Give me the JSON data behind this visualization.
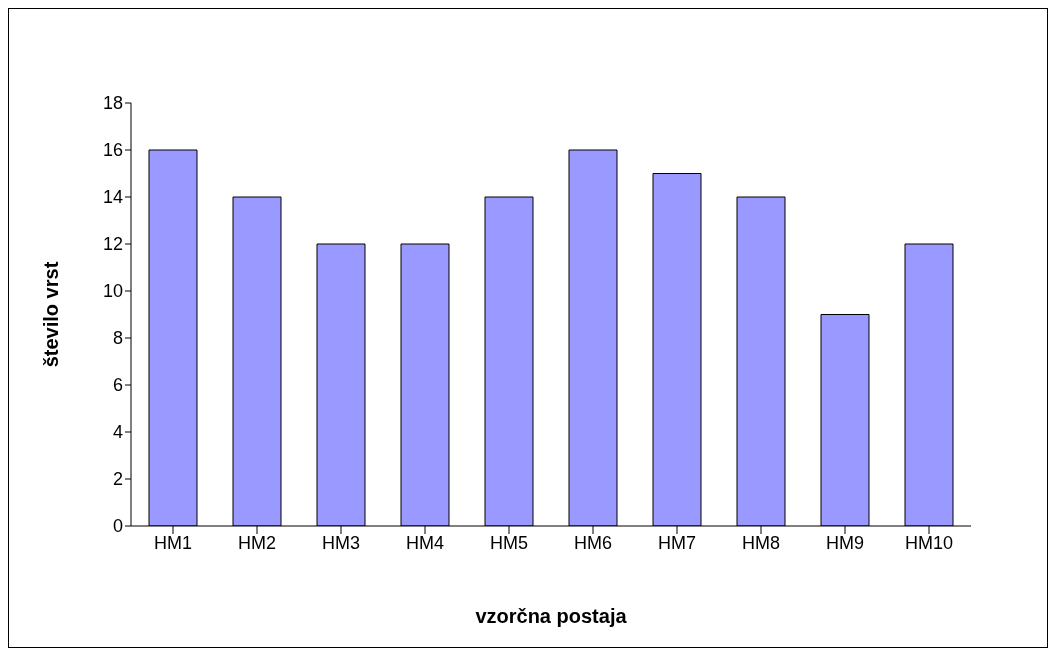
{
  "chart_data": {
    "type": "bar",
    "xlabel": "vzorčna postaja",
    "ylabel": "število vrst",
    "categories": [
      "HM1",
      "HM2",
      "HM3",
      "HM4",
      "HM5",
      "HM6",
      "HM7",
      "HM8",
      "HM9",
      "HM10"
    ],
    "values": [
      16,
      14,
      12,
      12,
      14,
      16,
      15,
      14,
      9,
      12
    ],
    "color": "#9999ff",
    "ylim": [
      0,
      18
    ],
    "yticks": [
      0,
      2,
      4,
      6,
      8,
      10,
      12,
      14,
      16,
      18
    ],
    "grid": false,
    "legend": false
  }
}
